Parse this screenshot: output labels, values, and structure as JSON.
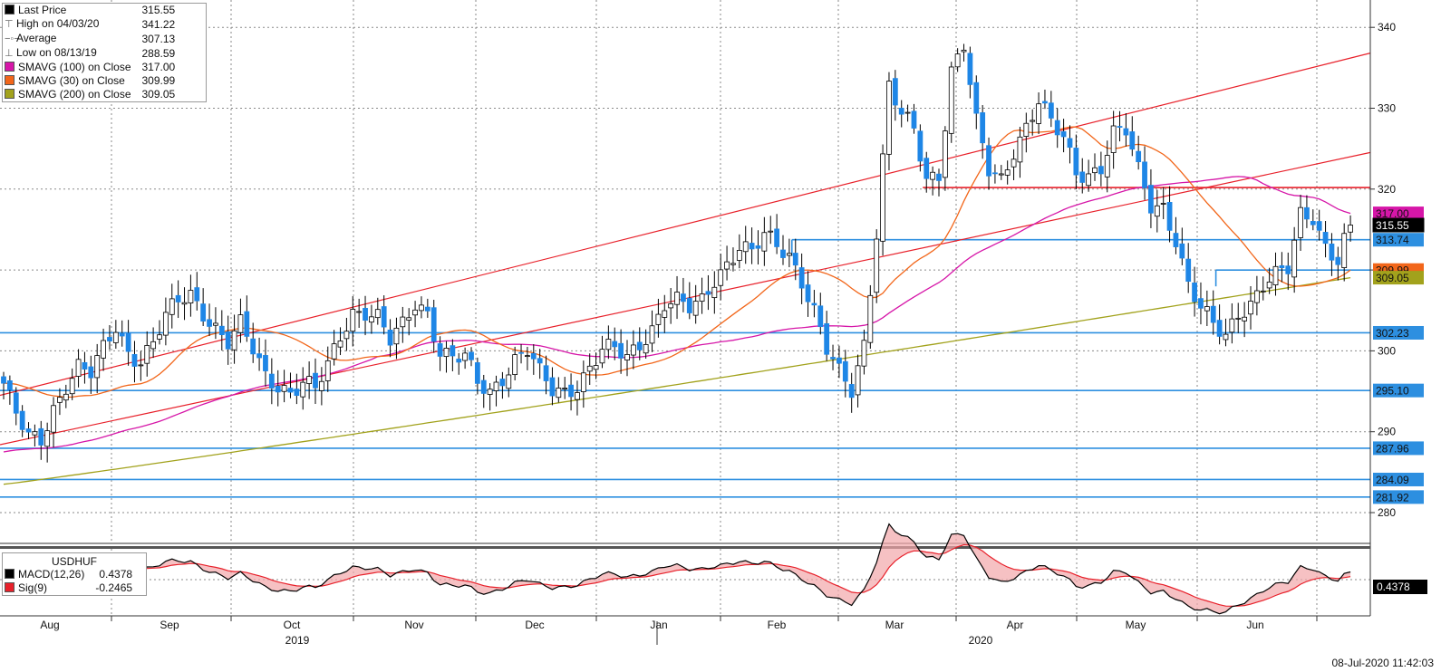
{
  "legend": {
    "rows": [
      {
        "label": "Last Price",
        "value": "315.55",
        "color": "#000000",
        "kind": "swatch"
      },
      {
        "label": "High on 04/03/20",
        "value": "341.22",
        "kind": "high"
      },
      {
        "label": "Average",
        "value": "307.13",
        "kind": "avg"
      },
      {
        "label": "Low on 08/13/19",
        "value": "288.59",
        "kind": "low"
      },
      {
        "label": "SMAVG (100)  on Close",
        "value": "317.00",
        "color": "#d616a8",
        "kind": "swatch"
      },
      {
        "label": "SMAVG (30)  on Close",
        "value": "309.99",
        "color": "#f2661a",
        "kind": "swatch"
      },
      {
        "label": "SMAVG (200)  on Close",
        "value": "309.05",
        "color": "#a2a21c",
        "kind": "swatch"
      }
    ]
  },
  "macd_legend": {
    "title": "USDHUF",
    "rows": [
      {
        "label": "MACD(12,26)",
        "value": "0.4378",
        "color": "#000000"
      },
      {
        "label": "Sig(9)",
        "value": "-0.2465",
        "color": "#e8202a"
      }
    ]
  },
  "timestamp": "08-Jul-2020 11:42:03",
  "chart_data": {
    "type": "candlestick",
    "ylim": [
      278,
      346
    ],
    "y_ticks": [
      280,
      290,
      300,
      310,
      320,
      330,
      340
    ],
    "x_months": [
      "Aug",
      "Sep",
      "Oct",
      "Nov",
      "Dec",
      "Jan",
      "Feb",
      "Mar",
      "Apr",
      "May",
      "Jun"
    ],
    "x_years": [
      "2019",
      "2020"
    ],
    "colors": {
      "up": "#ffffff",
      "down": "#1e86e6",
      "grid": "#8a8a8a",
      "level": "#2d8fe0",
      "trend": "#e8202a",
      "sma30": "#f2661a",
      "sma100": "#d616a8",
      "sma200": "#a2a21c"
    },
    "price_anchors": [
      [
        0,
        296
      ],
      [
        2,
        292
      ],
      [
        4,
        289
      ],
      [
        6,
        289
      ],
      [
        8,
        293
      ],
      [
        10,
        296
      ],
      [
        12,
        298
      ],
      [
        14,
        297
      ],
      [
        16,
        300
      ],
      [
        18,
        303
      ],
      [
        20,
        300
      ],
      [
        22,
        299
      ],
      [
        24,
        301
      ],
      [
        26,
        304
      ],
      [
        28,
        306
      ],
      [
        30,
        307
      ],
      [
        32,
        305
      ],
      [
        34,
        303
      ],
      [
        36,
        301
      ],
      [
        38,
        303
      ],
      [
        40,
        300
      ],
      [
        42,
        297
      ],
      [
        44,
        296
      ],
      [
        46,
        295
      ],
      [
        48,
        296
      ],
      [
        50,
        295
      ],
      [
        52,
        298
      ],
      [
        54,
        302
      ],
      [
        56,
        305
      ],
      [
        58,
        305
      ],
      [
        60,
        304
      ],
      [
        62,
        301
      ],
      [
        64,
        303
      ],
      [
        66,
        306
      ],
      [
        68,
        305
      ],
      [
        70,
        300
      ],
      [
        72,
        299
      ],
      [
        74,
        299
      ],
      [
        76,
        296
      ],
      [
        78,
        295
      ],
      [
        80,
        297
      ],
      [
        82,
        299
      ],
      [
        84,
        300
      ],
      [
        86,
        297
      ],
      [
        88,
        295
      ],
      [
        90,
        295
      ],
      [
        92,
        296
      ],
      [
        94,
        298
      ],
      [
        96,
        300
      ],
      [
        98,
        300
      ],
      [
        100,
        299
      ],
      [
        102,
        301
      ],
      [
        104,
        303
      ],
      [
        106,
        306
      ],
      [
        108,
        306
      ],
      [
        110,
        305
      ],
      [
        112,
        306
      ],
      [
        114,
        309
      ],
      [
        116,
        311
      ],
      [
        118,
        313
      ],
      [
        120,
        312
      ],
      [
        122,
        314
      ],
      [
        124,
        313
      ],
      [
        126,
        312
      ],
      [
        128,
        309
      ],
      [
        130,
        305
      ],
      [
        132,
        300
      ],
      [
        134,
        297
      ],
      [
        136,
        295
      ],
      [
        138,
        301
      ],
      [
        140,
        315
      ],
      [
        142,
        333
      ],
      [
        144,
        329
      ],
      [
        146,
        327
      ],
      [
        148,
        321
      ],
      [
        150,
        322
      ],
      [
        152,
        335
      ],
      [
        154,
        338
      ],
      [
        156,
        328
      ],
      [
        158,
        322
      ],
      [
        160,
        321
      ],
      [
        162,
        325
      ],
      [
        164,
        328
      ],
      [
        166,
        331
      ],
      [
        168,
        328
      ],
      [
        170,
        326
      ],
      [
        172,
        322
      ],
      [
        174,
        322
      ],
      [
        176,
        323
      ],
      [
        178,
        327
      ],
      [
        180,
        327
      ],
      [
        182,
        322
      ],
      [
        184,
        318
      ],
      [
        186,
        318
      ],
      [
        188,
        314
      ],
      [
        190,
        308
      ],
      [
        192,
        305
      ],
      [
        194,
        303
      ],
      [
        196,
        302
      ],
      [
        198,
        305
      ],
      [
        200,
        306
      ],
      [
        202,
        308
      ],
      [
        204,
        309
      ],
      [
        206,
        310
      ],
      [
        208,
        317
      ],
      [
        210,
        317
      ],
      [
        212,
        313
      ],
      [
        214,
        311
      ],
      [
        216,
        315.55
      ]
    ],
    "bar_count": 217,
    "sma30_last": 309.99,
    "sma100_last": 317.0,
    "sma200_last": 309.05,
    "high": {
      "date": "04/03/20",
      "value": 341.22
    },
    "low": {
      "date": "08/13/19",
      "value": 288.59
    },
    "average": 307.13,
    "last_price": 315.55,
    "last_price_tag": "315.55",
    "horizontal_levels": [
      {
        "value": 313.74,
        "label": "313.74",
        "start_bar": 127
      },
      {
        "value": 309.99,
        "label": "309.99",
        "start_bar": 195
      },
      {
        "value": 302.23,
        "label": "302.23",
        "start_bar": 0
      },
      {
        "value": 295.1,
        "label": "295.10",
        "start_bar": 0
      },
      {
        "value": 287.96,
        "label": "287.96",
        "start_bar": 0
      },
      {
        "value": 284.09,
        "label": "284.09",
        "start_bar": 0
      },
      {
        "value": 281.92,
        "label": "281.92",
        "start_bar": 0
      },
      {
        "value": 320.2,
        "label": "",
        "start_bar": 148
      }
    ],
    "trendlines": [
      {
        "x1": 0,
        "y1": 294.5,
        "x2": 216,
        "y2": 336.2
      },
      {
        "x1": 0,
        "y1": 288.4,
        "x2": 216,
        "y2": 324.0
      }
    ],
    "right_tags": [
      {
        "value": 317.0,
        "label": "317.00",
        "color": "#d616a8"
      },
      {
        "value": 315.55,
        "label": "315.55",
        "color": "#000000"
      },
      {
        "value": 313.74,
        "label": "313.74",
        "color": "#2d8fe0"
      },
      {
        "value": 309.99,
        "label": "309.99",
        "color": "#f2661a"
      },
      {
        "value": 309.05,
        "label": "309.05",
        "color": "#a2a21c"
      },
      {
        "value": 302.23,
        "label": "302.23",
        "color": "#2d8fe0"
      },
      {
        "value": 295.1,
        "label": "295.10",
        "color": "#2d8fe0"
      },
      {
        "value": 287.96,
        "label": "287.96",
        "color": "#2d8fe0"
      },
      {
        "value": 284.09,
        "label": "284.09",
        "color": "#2d8fe0"
      },
      {
        "value": 281.92,
        "label": "281.92",
        "color": "#2d8fe0"
      }
    ],
    "macd": {
      "macd_last": 0.4378,
      "signal_last": -0.2465,
      "tag": "0.4378"
    }
  }
}
